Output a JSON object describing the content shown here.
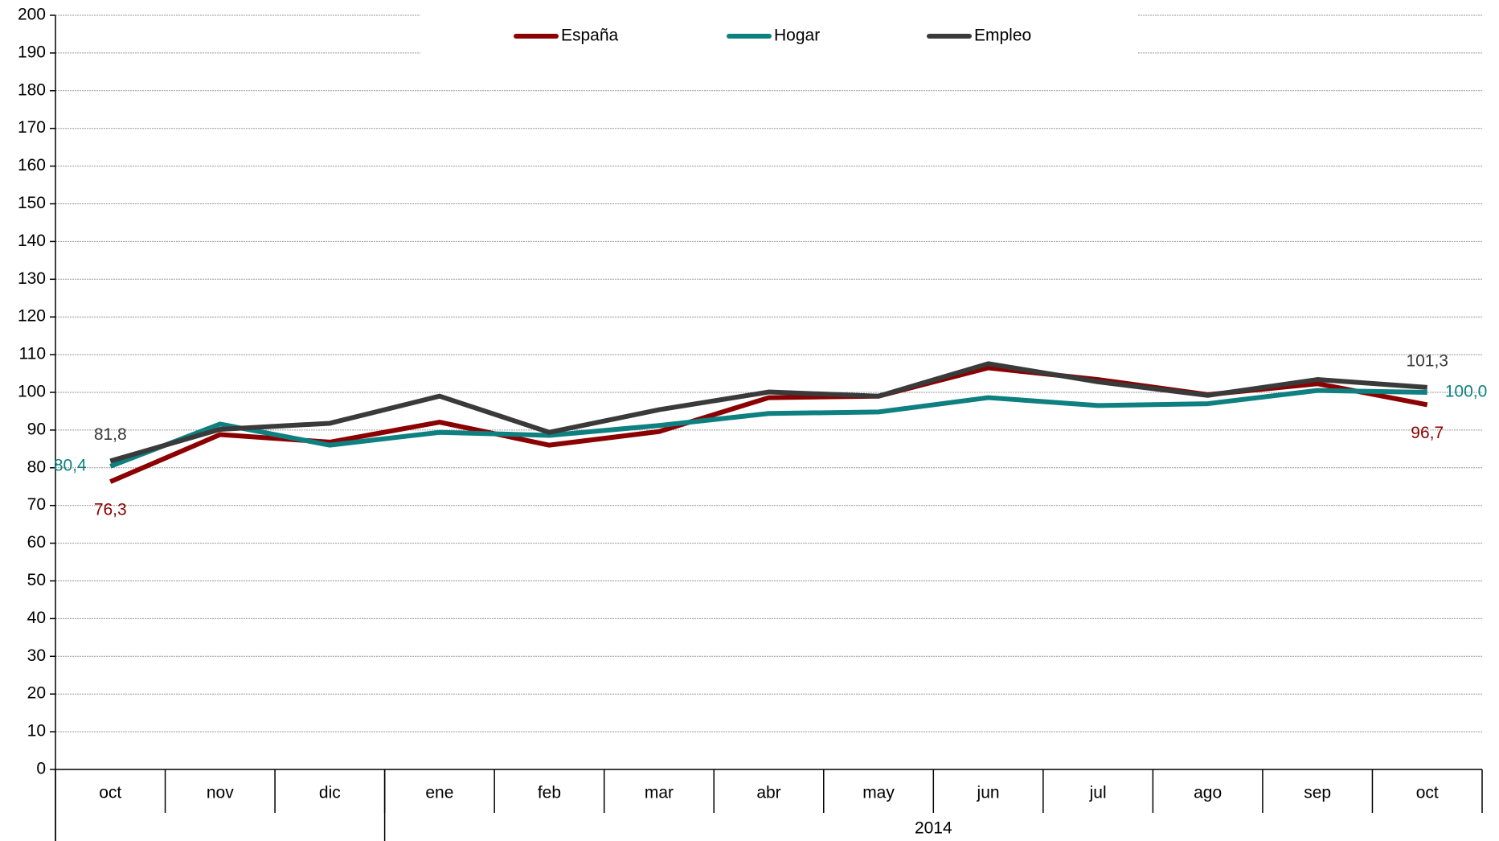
{
  "chart_data": {
    "type": "line",
    "categories": [
      "oct",
      "nov",
      "dic",
      "ene",
      "feb",
      "mar",
      "abr",
      "may",
      "jun",
      "jul",
      "ago",
      "sep",
      "oct"
    ],
    "category_groups": [
      {
        "label": null,
        "count": 3
      },
      {
        "label": "2014",
        "count": 10
      }
    ],
    "series": [
      {
        "name": "España",
        "color": "#8b0000",
        "values": [
          76.3,
          88.8,
          86.8,
          92.1,
          86.0,
          89.6,
          98.6,
          99.0,
          106.5,
          103.4,
          99.4,
          102.3,
          96.7
        ],
        "value_labels": [
          "76,3",
          null,
          null,
          null,
          null,
          null,
          null,
          null,
          null,
          null,
          null,
          null,
          "96,7"
        ]
      },
      {
        "name": "Hogar",
        "color": "#0e8080",
        "values": [
          80.4,
          91.6,
          86.0,
          89.4,
          88.6,
          91.2,
          94.4,
          94.8,
          98.6,
          96.5,
          97.0,
          100.5,
          100.0
        ],
        "value_labels": [
          "80,4",
          null,
          null,
          null,
          null,
          null,
          null,
          null,
          null,
          null,
          null,
          null,
          "100,0"
        ]
      },
      {
        "name": "Empleo",
        "color": "#3a3a3a",
        "values": [
          81.8,
          90.2,
          91.8,
          99.0,
          89.4,
          95.4,
          100.1,
          99.0,
          107.6,
          102.8,
          99.2,
          103.4,
          101.3
        ],
        "value_labels": [
          "81,8",
          null,
          null,
          null,
          null,
          null,
          null,
          null,
          null,
          null,
          null,
          null,
          "101,3"
        ]
      }
    ],
    "ylim": [
      0,
      200
    ],
    "yticks": [
      0,
      10,
      20,
      30,
      40,
      50,
      60,
      70,
      80,
      90,
      100,
      110,
      120,
      130,
      140,
      150,
      160,
      170,
      180,
      190,
      200
    ],
    "grid": true,
    "legend": "top"
  }
}
